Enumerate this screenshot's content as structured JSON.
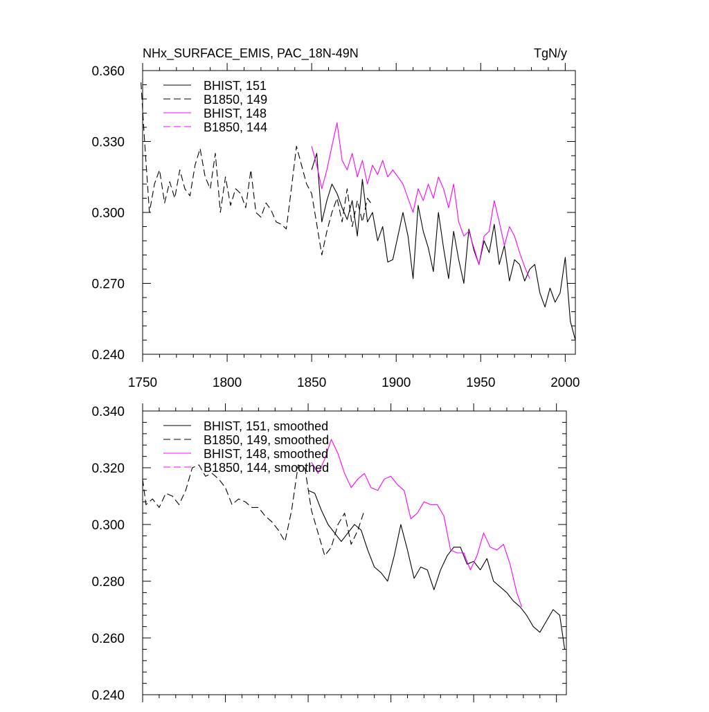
{
  "chart_data": [
    {
      "type": "line",
      "title": "NHx_SURFACE_EMIS, PAC_18N-49N",
      "units": "TgN/y",
      "xlim": [
        1750,
        2006
      ],
      "ylim": [
        0.24,
        0.36
      ],
      "xticks": [
        1750,
        1800,
        1850,
        1900,
        1950,
        2000
      ],
      "xtick_labels": [
        "1750",
        "1800",
        "1850",
        "1900",
        "1950",
        "2000"
      ],
      "yticks": [
        0.24,
        0.27,
        0.3,
        0.33,
        0.36
      ],
      "ytick_labels": [
        "0.240",
        "0.270",
        "0.300",
        "0.330",
        "0.360"
      ],
      "legend_position": "top-left",
      "series": [
        {
          "name": "BHIST, 151",
          "color": "#000000",
          "dash": "solid",
          "x": [
            1850,
            1853,
            1856,
            1859,
            1862,
            1865,
            1868,
            1871,
            1874,
            1877,
            1880,
            1883,
            1886,
            1889,
            1892,
            1895,
            1898,
            1901,
            1904,
            1907,
            1910,
            1913,
            1916,
            1919,
            1922,
            1925,
            1928,
            1931,
            1934,
            1937,
            1940,
            1943,
            1946,
            1949,
            1952,
            1955,
            1958,
            1961,
            1964,
            1967,
            1970,
            1973,
            1976,
            1979,
            1982,
            1985,
            1988,
            1991,
            1994,
            1997,
            2000,
            2003,
            2006
          ],
          "y": [
            0.318,
            0.325,
            0.296,
            0.305,
            0.312,
            0.308,
            0.302,
            0.297,
            0.305,
            0.29,
            0.314,
            0.296,
            0.3,
            0.288,
            0.294,
            0.279,
            0.28,
            0.29,
            0.3,
            0.29,
            0.272,
            0.303,
            0.292,
            0.285,
            0.275,
            0.3,
            0.285,
            0.272,
            0.292,
            0.28,
            0.27,
            0.293,
            0.284,
            0.278,
            0.288,
            0.283,
            0.295,
            0.278,
            0.286,
            0.271,
            0.28,
            0.278,
            0.271,
            0.276,
            0.278,
            0.266,
            0.26,
            0.268,
            0.262,
            0.266,
            0.281,
            0.254,
            0.246
          ]
        },
        {
          "name": "B1850, 149",
          "color": "#000000",
          "dash": "dashed",
          "x": [
            1749,
            1751,
            1754,
            1757,
            1760,
            1763,
            1766,
            1769,
            1772,
            1775,
            1778,
            1781,
            1784,
            1787,
            1790,
            1793,
            1796,
            1799,
            1802,
            1805,
            1808,
            1811,
            1814,
            1817,
            1820,
            1823,
            1826,
            1829,
            1832,
            1835,
            1838,
            1841,
            1844,
            1847,
            1850,
            1853,
            1856,
            1859,
            1862,
            1865,
            1868,
            1871,
            1874,
            1877,
            1880,
            1883,
            1886
          ],
          "y": [
            0.355,
            0.332,
            0.3,
            0.312,
            0.318,
            0.304,
            0.313,
            0.306,
            0.318,
            0.31,
            0.307,
            0.32,
            0.327,
            0.315,
            0.31,
            0.325,
            0.3,
            0.315,
            0.303,
            0.31,
            0.308,
            0.302,
            0.318,
            0.3,
            0.298,
            0.304,
            0.301,
            0.296,
            0.295,
            0.293,
            0.31,
            0.328,
            0.32,
            0.312,
            0.308,
            0.295,
            0.282,
            0.292,
            0.3,
            0.306,
            0.296,
            0.31,
            0.294,
            0.305,
            0.296,
            0.306,
            0.303
          ]
        },
        {
          "name": "BHIST, 148",
          "color": "#ff00ff",
          "dash": "solid",
          "x": [
            1850,
            1853,
            1856,
            1859,
            1862,
            1865,
            1868,
            1871,
            1874,
            1877,
            1880,
            1883,
            1886,
            1889,
            1892,
            1895,
            1898,
            1901,
            1904,
            1907,
            1910,
            1913,
            1916,
            1919,
            1922,
            1925,
            1928,
            1931,
            1934,
            1937,
            1940,
            1943,
            1946,
            1949,
            1952,
            1955,
            1958,
            1961,
            1964,
            1967,
            1970,
            1973,
            1976,
            1979
          ],
          "y": [
            0.328,
            0.32,
            0.31,
            0.318,
            0.328,
            0.338,
            0.322,
            0.318,
            0.325,
            0.315,
            0.322,
            0.312,
            0.32,
            0.316,
            0.322,
            0.315,
            0.318,
            0.315,
            0.312,
            0.306,
            0.3,
            0.31,
            0.305,
            0.312,
            0.306,
            0.315,
            0.31,
            0.302,
            0.312,
            0.296,
            0.29,
            0.292,
            0.285,
            0.278,
            0.29,
            0.292,
            0.305,
            0.296,
            0.286,
            0.294,
            0.29,
            0.283,
            0.277,
            0.272
          ]
        },
        {
          "name": "B1850, 144",
          "color": "#ff00ff",
          "dash": "dashed",
          "x": [],
          "y": []
        }
      ]
    },
    {
      "type": "line",
      "xlim": [
        1750,
        2006
      ],
      "ylim": [
        0.24,
        0.34
      ],
      "yticks": [
        0.24,
        0.26,
        0.28,
        0.3,
        0.32,
        0.34
      ],
      "ytick_labels": [
        "0.240",
        "0.260",
        "0.280",
        "0.300",
        "0.320",
        "0.340"
      ],
      "legend_position": "top-left",
      "series": [
        {
          "name": "BHIST, 151, smoothed",
          "color": "#000000",
          "dash": "solid",
          "x": [
            1850,
            1854,
            1858,
            1862,
            1866,
            1870,
            1874,
            1878,
            1882,
            1886,
            1890,
            1894,
            1898,
            1902,
            1906,
            1910,
            1914,
            1918,
            1922,
            1926,
            1930,
            1934,
            1938,
            1942,
            1946,
            1950,
            1954,
            1958,
            1962,
            1966,
            1970,
            1974,
            1978,
            1982,
            1986,
            1990,
            1994,
            1998,
            2002,
            2005
          ],
          "y": [
            0.312,
            0.311,
            0.305,
            0.3,
            0.297,
            0.294,
            0.297,
            0.3,
            0.298,
            0.291,
            0.285,
            0.283,
            0.28,
            0.289,
            0.3,
            0.291,
            0.281,
            0.285,
            0.284,
            0.277,
            0.284,
            0.289,
            0.292,
            0.292,
            0.286,
            0.287,
            0.284,
            0.288,
            0.28,
            0.278,
            0.276,
            0.273,
            0.271,
            0.268,
            0.264,
            0.262,
            0.266,
            0.27,
            0.268,
            0.256
          ]
        },
        {
          "name": "B1850, 149, smoothed",
          "color": "#000000",
          "dash": "dashed",
          "x": [
            1750,
            1752,
            1756,
            1760,
            1764,
            1768,
            1772,
            1776,
            1780,
            1784,
            1788,
            1792,
            1796,
            1800,
            1804,
            1808,
            1812,
            1816,
            1820,
            1824,
            1828,
            1832,
            1836,
            1840,
            1844,
            1848,
            1852,
            1856,
            1860,
            1864,
            1868,
            1872,
            1876,
            1880,
            1884
          ],
          "y": [
            0.316,
            0.307,
            0.309,
            0.306,
            0.311,
            0.31,
            0.307,
            0.312,
            0.32,
            0.321,
            0.317,
            0.318,
            0.316,
            0.313,
            0.307,
            0.309,
            0.308,
            0.306,
            0.306,
            0.303,
            0.301,
            0.298,
            0.294,
            0.305,
            0.321,
            0.32,
            0.305,
            0.297,
            0.289,
            0.292,
            0.3,
            0.304,
            0.293,
            0.298,
            0.305
          ]
        },
        {
          "name": "BHIST, 148, smoothed",
          "color": "#ff00ff",
          "dash": "solid",
          "x": [
            1852,
            1856,
            1860,
            1864,
            1868,
            1872,
            1876,
            1880,
            1884,
            1888,
            1892,
            1896,
            1900,
            1904,
            1908,
            1912,
            1916,
            1920,
            1924,
            1928,
            1932,
            1936,
            1940,
            1944,
            1948,
            1952,
            1956,
            1960,
            1964,
            1968,
            1972,
            1976,
            1979
          ],
          "y": [
            0.322,
            0.318,
            0.323,
            0.33,
            0.325,
            0.318,
            0.313,
            0.316,
            0.318,
            0.313,
            0.312,
            0.316,
            0.317,
            0.314,
            0.312,
            0.302,
            0.304,
            0.308,
            0.307,
            0.307,
            0.303,
            0.291,
            0.29,
            0.29,
            0.284,
            0.289,
            0.297,
            0.292,
            0.291,
            0.293,
            0.286,
            0.276,
            0.271
          ]
        },
        {
          "name": "B1850, 144, smoothed",
          "color": "#ff00ff",
          "dash": "dashed",
          "x": [],
          "y": []
        }
      ]
    }
  ]
}
